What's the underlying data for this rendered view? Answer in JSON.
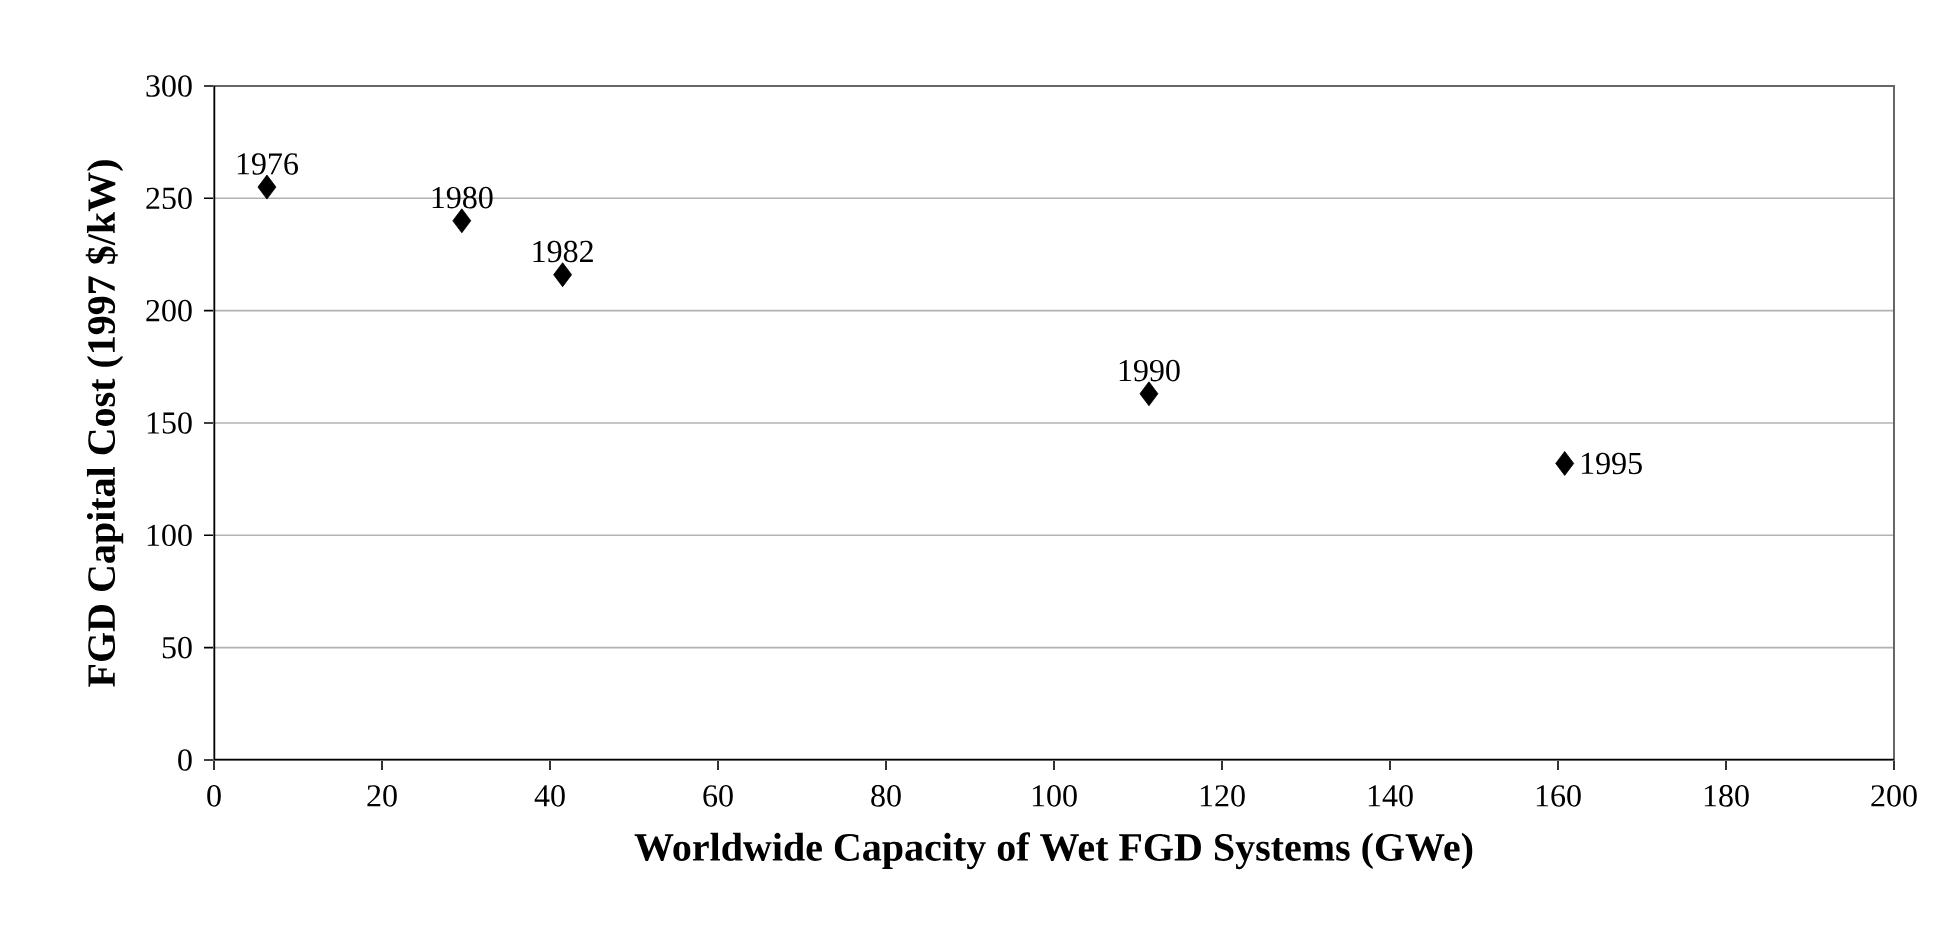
{
  "chart_data": {
    "type": "scatter",
    "xlabel": "Worldwide Capacity of Wet FGD Systems (GWe)",
    "ylabel": "FGD Capital Cost (1997 $/kW)",
    "x": [
      6.3,
      29.5,
      41.5,
      111.3,
      160.8
    ],
    "values": [
      255,
      240,
      216,
      163,
      132
    ],
    "color": "#000000",
    "marker": "diamond",
    "grid": "y",
    "xlim": [
      0,
      200
    ],
    "xticks": [
      0,
      20,
      40,
      60,
      80,
      100,
      120,
      140,
      160,
      180,
      200
    ],
    "ylim": [
      0,
      300
    ],
    "yticks": [
      0,
      50,
      100,
      150,
      200,
      250,
      300
    ],
    "annotations": [
      {
        "text": "1976",
        "x": 6.3,
        "y": 255
      },
      {
        "text": "1980",
        "x": 29.5,
        "y": 240
      },
      {
        "text": "1982",
        "x": 41.5,
        "y": 216
      },
      {
        "text": "1990",
        "x": 111.3,
        "y": 163
      },
      {
        "text": "1995",
        "x": 160.8,
        "y": 132
      }
    ]
  }
}
